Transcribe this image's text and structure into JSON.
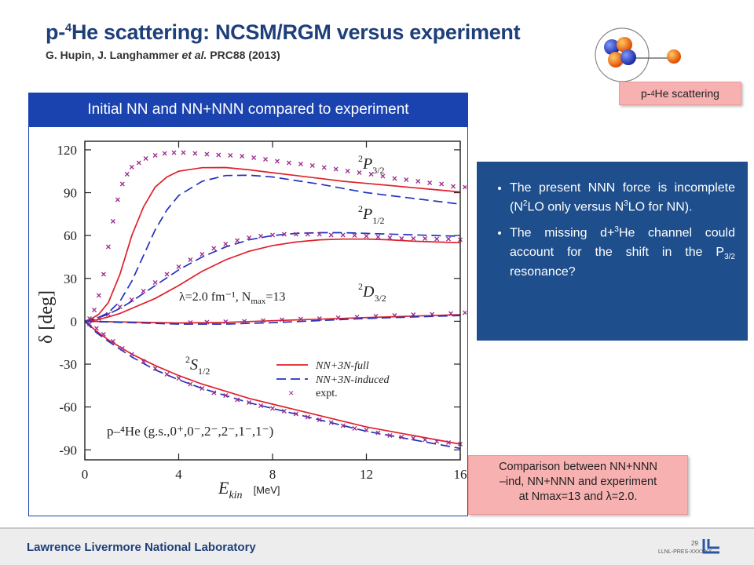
{
  "slide": {
    "title_prefix": "p-",
    "title_sup": "4",
    "title_rest": "He scattering: NCSM/RGM versus experiment",
    "subtitle_authors": "G. Hupin, J. Langhammer ",
    "subtitle_etal": "et al.",
    "subtitle_ref": " PRC88 (2013)",
    "panel_header": "Initial NN and NN+NNN compared to experiment",
    "badge_prefix": "p-",
    "badge_sup": "4",
    "badge_rest": "He scattering",
    "bullets": [
      {
        "a": "The present NNN force is incomplete (N",
        "sup1": "2",
        "b": "LO only versus N",
        "sup2": "3",
        "c": "LO for NN)."
      },
      {
        "a": "The missing d+",
        "sup1": "3",
        "b": "He channel could account for the shift in the P",
        "sub": "3/2",
        "c": " resonance?"
      }
    ],
    "note_line1": "Comparison between NN+NNN",
    "note_line2": "–ind, NN+NNN and experiment",
    "note_line3a": "at Nmax=13 and ",
    "note_lambda": "λ",
    "note_line3b": "=2.0.",
    "footer_lab": "Lawrence Livermore National Laboratory",
    "page_number": "29",
    "doc_id": "LLNL-PRES-XXXXXX"
  },
  "colors": {
    "title": "#1f3f7a",
    "header_bg": "#1a43b0",
    "bluebox_bg": "#1e4e8c",
    "pink": "#f7b1b1",
    "full": "#e0202a",
    "induced": "#2233bb",
    "expt": "#9c2a8c"
  },
  "chart_data": {
    "type": "line",
    "xlabel": "E",
    "xlabel_sub": "kin",
    "xlabel_unit": "[MeV]",
    "ylabel": "δ [deg]",
    "xlim": [
      0,
      16
    ],
    "ylim": [
      -97,
      126
    ],
    "xticks": [
      0,
      4,
      8,
      12,
      16
    ],
    "yticks": [
      120,
      90,
      60,
      30,
      0,
      -30,
      -60,
      -90
    ],
    "annotations": {
      "p32": "P",
      "p32_pre": "2",
      "p32_sub": "3/2",
      "p12": "P",
      "p12_pre": "2",
      "p12_sub": "1/2",
      "d32": "D",
      "d32_pre": "2",
      "d32_sub": "3/2",
      "s12": "S",
      "s12_pre": "2",
      "s12_sub": "1/2",
      "params": "λ=2.0 fm⁻¹, N",
      "params_sub": "max",
      "params_end": "=13",
      "system": "p–⁴He (g.s.,0⁺,0⁻,2⁻,2⁻,1⁻,1⁻)"
    },
    "legend": [
      "NN+3N-full",
      "NN+3N-induced",
      "expt."
    ],
    "legend_placement": "lower-right",
    "curves": [
      {
        "channel": "P3/2",
        "kind": "full",
        "x": [
          0,
          0.3,
          0.6,
          1,
          1.5,
          2,
          2.5,
          3,
          3.5,
          4,
          5,
          6,
          7,
          8,
          9,
          10,
          11,
          12,
          13,
          14,
          15,
          16
        ],
        "y": [
          0,
          2,
          5,
          13,
          33,
          60,
          80,
          94,
          101,
          105,
          107.5,
          107.6,
          106,
          104,
          102,
          100,
          98,
          96.5,
          95,
          93.5,
          92,
          90.5
        ]
      },
      {
        "channel": "P3/2",
        "kind": "induced",
        "x": [
          0,
          0.5,
          1,
          1.5,
          2,
          2.5,
          3,
          3.5,
          4,
          5,
          6,
          7,
          8,
          9,
          10,
          11,
          12,
          13,
          14,
          15,
          16
        ],
        "y": [
          0,
          2,
          6,
          14,
          28,
          46,
          64,
          78,
          88,
          98,
          102,
          102.2,
          101,
          98.5,
          96,
          93,
          90,
          88,
          86,
          84,
          82
        ]
      },
      {
        "channel": "P1/2",
        "kind": "full",
        "x": [
          0,
          0.5,
          1,
          1.5,
          2,
          3,
          4,
          5,
          6,
          7,
          8,
          9,
          10,
          11,
          12,
          13,
          14,
          15,
          16
        ],
        "y": [
          0,
          1,
          3,
          5.5,
          9,
          16,
          25,
          35,
          43,
          49,
          53,
          55.5,
          57,
          57.5,
          57.5,
          57,
          56,
          55.5,
          55
        ]
      },
      {
        "channel": "P1/2",
        "kind": "induced",
        "x": [
          0,
          0.5,
          1,
          1.5,
          2,
          3,
          4,
          5,
          6,
          7,
          8,
          9,
          10,
          11,
          12,
          13,
          14,
          15,
          16
        ],
        "y": [
          0,
          2,
          5,
          9,
          14,
          25,
          36,
          45,
          52,
          57,
          60,
          61.5,
          62,
          62,
          61.5,
          61,
          60.5,
          60,
          59.5
        ]
      },
      {
        "channel": "D3/2",
        "kind": "full",
        "x": [
          0,
          2,
          4,
          6,
          8,
          10,
          12,
          14,
          16
        ],
        "y": [
          0,
          -0.6,
          -1.2,
          -0.8,
          0.4,
          1.5,
          2.6,
          3.6,
          4.6
        ]
      },
      {
        "channel": "D3/2",
        "kind": "induced",
        "x": [
          0,
          2,
          4,
          6,
          8,
          10,
          12,
          14,
          16
        ],
        "y": [
          0,
          -1,
          -2,
          -2,
          -1,
          0.5,
          2,
          3,
          4
        ]
      },
      {
        "channel": "S1/2",
        "kind": "full",
        "x": [
          0,
          0.5,
          1,
          2,
          3,
          4,
          5,
          6,
          7,
          8,
          9,
          10,
          11,
          12,
          13,
          14,
          15,
          16
        ],
        "y": [
          0,
          -7,
          -13,
          -23,
          -31,
          -38,
          -44,
          -49,
          -54,
          -58,
          -62,
          -66,
          -70,
          -74,
          -77,
          -80,
          -83,
          -86
        ]
      },
      {
        "channel": "S1/2",
        "kind": "induced",
        "x": [
          0,
          0.5,
          1,
          2,
          3,
          4,
          5,
          6,
          7,
          8,
          9,
          10,
          11,
          12,
          13,
          14,
          15,
          16
        ],
        "y": [
          0,
          -8,
          -14,
          -25,
          -34,
          -41,
          -47,
          -52,
          -57,
          -61,
          -65,
          -69,
          -73,
          -77,
          -80,
          -83,
          -86,
          -89
        ]
      }
    ],
    "expt": [
      {
        "channel": "P3/2",
        "x": [
          0.2,
          0.4,
          0.6,
          0.8,
          1.0,
          1.2,
          1.4,
          1.6,
          1.8,
          2.0,
          2.3,
          2.6,
          3.0,
          3.4,
          3.8,
          4.2,
          4.7,
          5.2,
          5.7,
          6.2,
          6.7,
          7.2,
          7.7,
          8.2,
          8.7,
          9.2,
          9.7,
          10.2,
          10.7,
          11.2,
          11.7,
          12.2,
          12.7,
          13.2,
          13.7,
          14.2,
          14.7,
          15.2,
          15.7,
          16.2
        ],
        "y": [
          2,
          8,
          18,
          33,
          52,
          70,
          85,
          96,
          103,
          108,
          111,
          114,
          116,
          117.5,
          118,
          118,
          117.5,
          117,
          116.5,
          116,
          115.5,
          114.5,
          113.5,
          112,
          111,
          110,
          109,
          107.5,
          106.5,
          105,
          104,
          103,
          101.5,
          100,
          99,
          98,
          97,
          96,
          94.5,
          94
        ]
      },
      {
        "channel": "P1/2",
        "x": [
          0.6,
          1,
          1.5,
          2,
          2.5,
          3,
          3.5,
          4,
          4.5,
          5,
          5.5,
          6,
          6.5,
          7,
          7.5,
          8,
          8.5,
          9,
          9.5,
          10,
          10.5,
          11,
          11.5,
          12,
          12.5,
          13,
          13.5,
          14,
          14.5,
          15,
          15.5,
          16
        ],
        "y": [
          2,
          5,
          10,
          15,
          21,
          27,
          33,
          38,
          43,
          47,
          51,
          54,
          56.5,
          58.5,
          59.5,
          60.5,
          61,
          61,
          61,
          61,
          60.5,
          60.5,
          60,
          59.5,
          59,
          58.5,
          58,
          58,
          58,
          57.5,
          57.5,
          57
        ]
      },
      {
        "channel": "D3/2",
        "x": [
          4.5,
          5.2,
          6,
          6.8,
          7.6,
          8.4,
          9.2,
          10,
          10.8,
          11.6,
          12.4,
          13.2,
          14,
          14.8,
          15.6,
          16.2
        ],
        "y": [
          -1,
          -0.7,
          -0.3,
          0,
          0.5,
          1,
          1.5,
          2,
          2.5,
          3,
          3.5,
          4,
          4.5,
          5,
          5.5,
          6
        ]
      },
      {
        "channel": "S1/2",
        "x": [
          0.2,
          0.5,
          0.8,
          1.2,
          1.6,
          2,
          2.5,
          3,
          3.5,
          4,
          4.5,
          5,
          5.5,
          6,
          6.5,
          7,
          7.5,
          8,
          8.5,
          9,
          9.5,
          10,
          10.5,
          11,
          11.5,
          12,
          12.5,
          13,
          13.5,
          14,
          14.5,
          15,
          15.5,
          16
        ],
        "y": [
          -2,
          -5,
          -9,
          -14,
          -19,
          -23,
          -28,
          -33,
          -37,
          -40,
          -44,
          -47,
          -50,
          -52,
          -55,
          -57,
          -59,
          -61,
          -63,
          -65,
          -67,
          -69,
          -71,
          -73,
          -75,
          -76,
          -78,
          -80,
          -81,
          -82,
          -83,
          -84,
          -85,
          -86
        ]
      }
    ]
  }
}
